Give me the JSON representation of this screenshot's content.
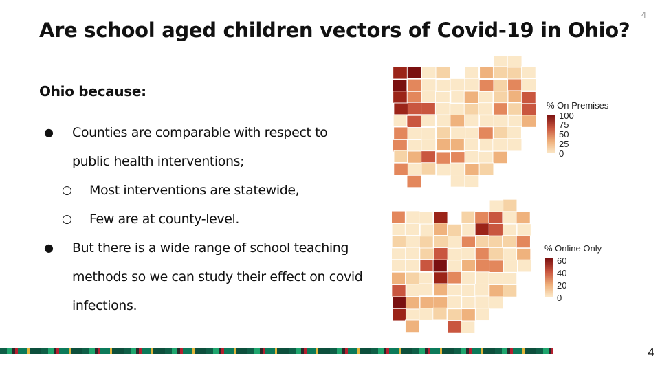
{
  "slide": {
    "title": "Are school aged children vectors of Covid-19 in Ohio?",
    "page_number_top": "4",
    "page_number_bottom": "4",
    "subheading": "Ohio because:",
    "bullets": [
      {
        "level": 1,
        "marker": "●",
        "text": "Counties are comparable with respect to public health interventions;"
      },
      {
        "level": 2,
        "marker": "○",
        "text": "Most interventions are statewide,"
      },
      {
        "level": 2,
        "marker": "○",
        "text": "Few are at county-level."
      },
      {
        "level": 1,
        "marker": "●",
        "text": "But there is a wide range of school teaching methods so we can study their effect on covid infections."
      }
    ]
  },
  "maps": [
    {
      "name": "on-premises",
      "legend_title": "% On Premises",
      "ticks": [
        "100",
        "75",
        "50",
        "25",
        "0"
      ],
      "color_high": "#7a1010",
      "color_low": "#fbe8c8"
    },
    {
      "name": "online-only",
      "legend_title": "% Online Only",
      "ticks": [
        "60",
        "40",
        "20",
        "0"
      ],
      "color_high": "#7a1010",
      "color_low": "#fbe8c8"
    }
  ],
  "colors": {
    "text": "#111111",
    "page_number": "#9a9a9a",
    "map_palette": [
      "#fbe8c8",
      "#f6d3a6",
      "#efb27d",
      "#e3875c",
      "#c9563f",
      "#9b2418",
      "#7a1010"
    ]
  }
}
